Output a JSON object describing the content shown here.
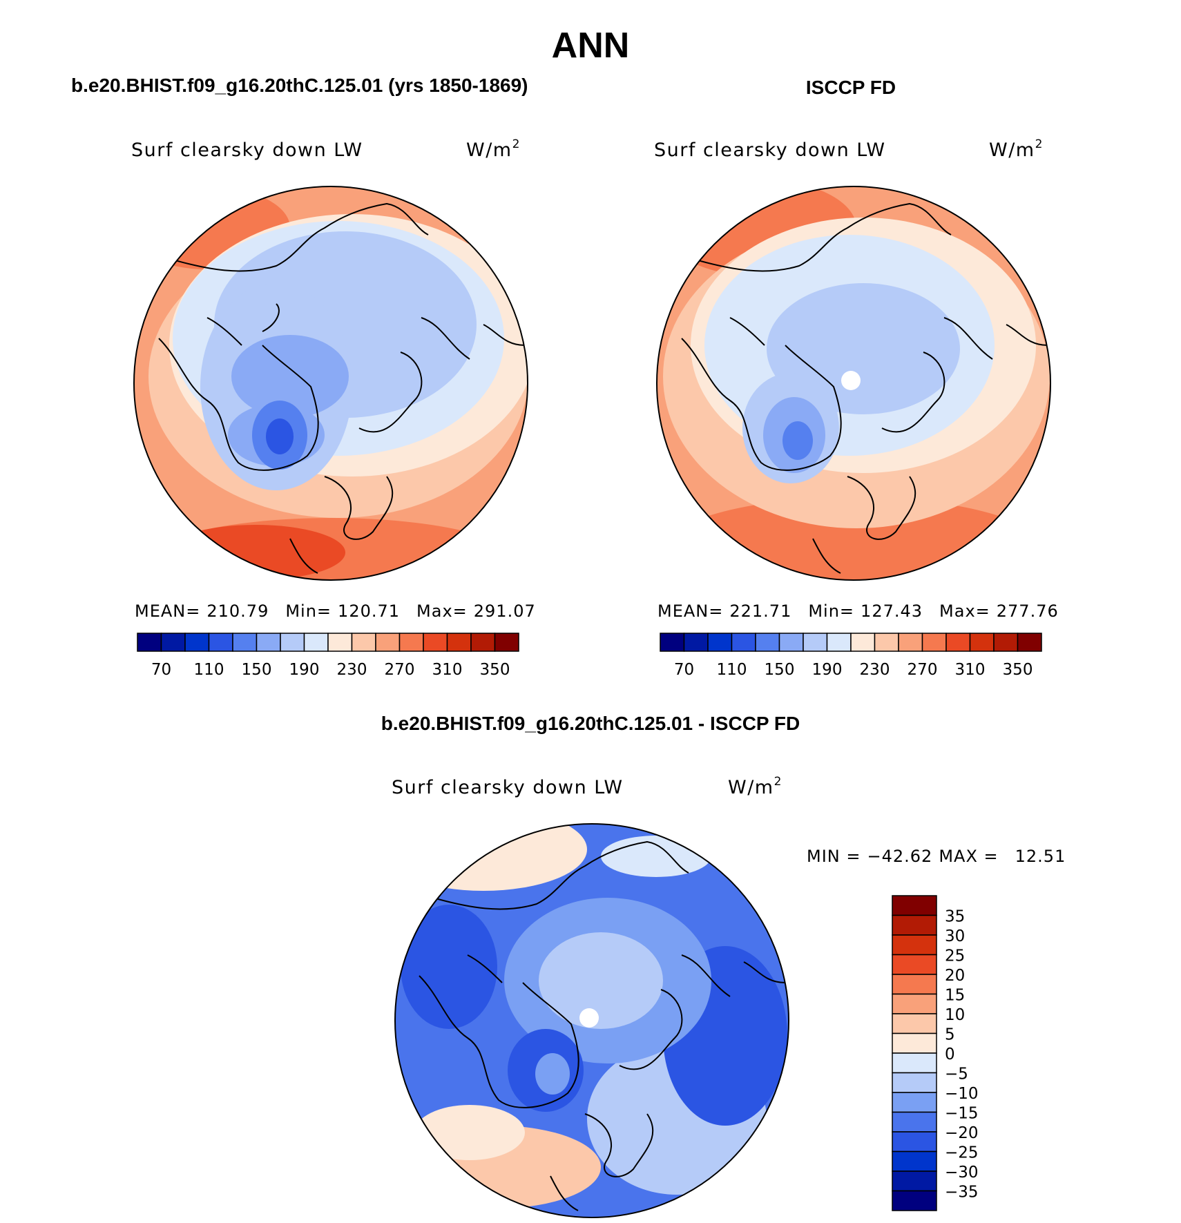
{
  "page_title": "ANN",
  "colors": {
    "abs_scale": [
      "#00007f",
      "#0019a3",
      "#0035cc",
      "#2b55e3",
      "#5580ef",
      "#8aaaf5",
      "#b5cbf8",
      "#dae8fb",
      "#fde9d9",
      "#fcc8aa",
      "#f9a17a",
      "#f5794f",
      "#ea4a25",
      "#d4320d",
      "#b21b05",
      "#800000"
    ],
    "diff_scale": [
      "#00007f",
      "#0019a3",
      "#0035cc",
      "#2b55e3",
      "#4a74ec",
      "#7aa0f3",
      "#b5cbf8",
      "#dae8fb",
      "#fde9d9",
      "#fcc8aa",
      "#f9a17a",
      "#f5794f",
      "#ea4a25",
      "#d4320d",
      "#b21b05",
      "#800000"
    ]
  },
  "chart_data": [
    {
      "type": "heatmap",
      "panel_title": "b.e20.BHIST.f09_g16.20thC.125.01 (yrs 1850-1869)",
      "variable": "Surf clearsky down LW",
      "units": "W/m",
      "units_exp": "2",
      "projection": "north polar stereographic",
      "stats": {
        "mean_label": "MEAN=",
        "mean": "210.79",
        "min_label": "Min=",
        "min": "120.71",
        "max_label": "Max=",
        "max": "291.07"
      },
      "colorbar_ticks": [
        "70",
        "110",
        "150",
        "190",
        "230",
        "270",
        "310",
        "350"
      ],
      "colorbar_levels": [
        70,
        90,
        110,
        130,
        150,
        170,
        190,
        210,
        230,
        250,
        270,
        290,
        310,
        330,
        350
      ]
    },
    {
      "type": "heatmap",
      "panel_title": "ISCCP FD",
      "variable": "Surf clearsky down LW",
      "units": "W/m",
      "units_exp": "2",
      "projection": "north polar stereographic",
      "stats": {
        "mean_label": "MEAN=",
        "mean": "221.71",
        "min_label": "Min=",
        "min": "127.43",
        "max_label": "Max=",
        "max": "277.76"
      },
      "colorbar_ticks": [
        "70",
        "110",
        "150",
        "190",
        "230",
        "270",
        "310",
        "350"
      ],
      "colorbar_levels": [
        70,
        90,
        110,
        130,
        150,
        170,
        190,
        210,
        230,
        250,
        270,
        290,
        310,
        330,
        350
      ]
    },
    {
      "type": "heatmap",
      "panel_title": "b.e20.BHIST.f09_g16.20thC.125.01 - ISCCP FD",
      "variable": "Surf clearsky down LW",
      "units": "W/m",
      "units_exp": "2",
      "projection": "north polar stereographic",
      "stats": {
        "min_label": "MIN =",
        "min": "−42.62",
        "max_label": "MAX =",
        "max": "12.51"
      },
      "colorbar_ticks": [
        "35",
        "30",
        "25",
        "20",
        "15",
        "10",
        "5",
        "0",
        "−5",
        "−10",
        "−15",
        "−20",
        "−25",
        "−30",
        "−35"
      ],
      "colorbar_levels": [
        35,
        30,
        25,
        20,
        15,
        10,
        5,
        0,
        -5,
        -10,
        -15,
        -20,
        -25,
        -30,
        -35
      ]
    }
  ]
}
